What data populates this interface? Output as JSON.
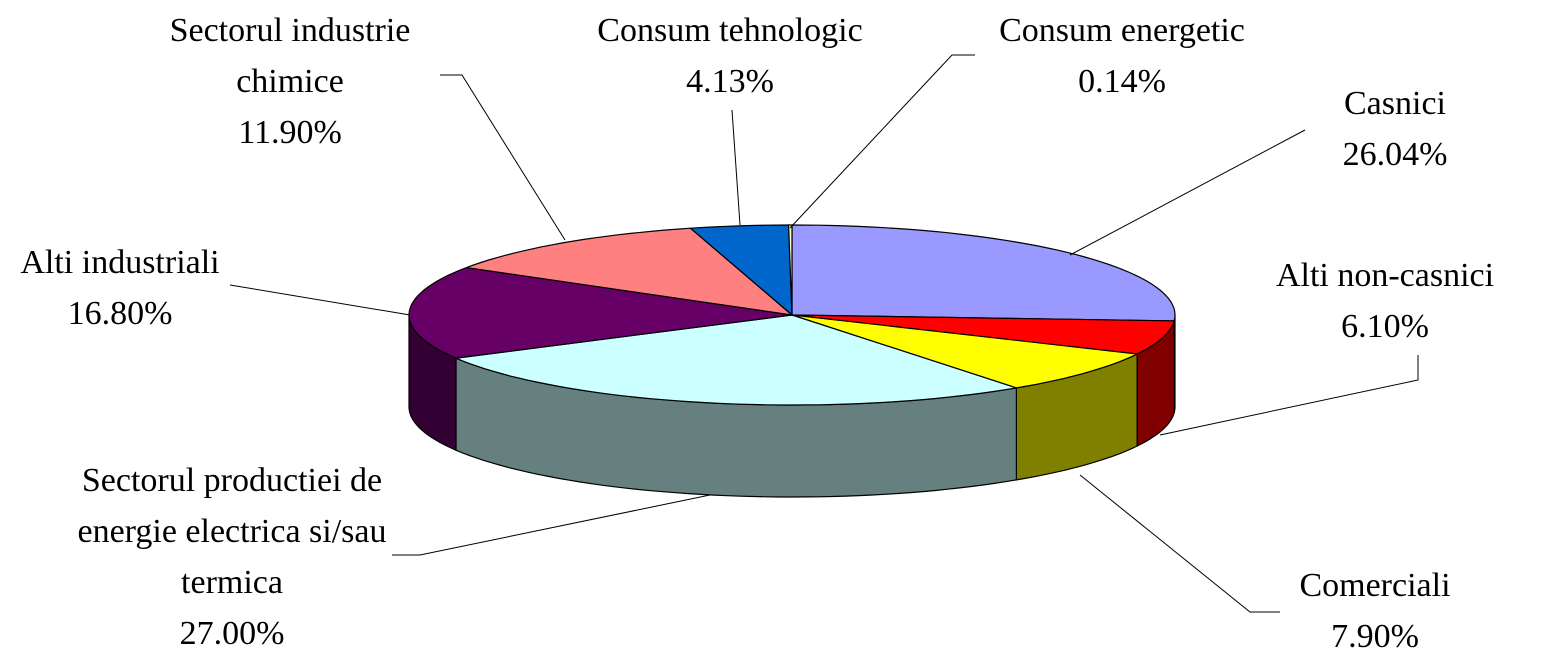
{
  "chart_data": {
    "type": "pie",
    "categories": [
      "Casnici",
      "Alti non-casnici",
      "Comerciali",
      "Sectorul productiei de energie electrica si/sau termica",
      "Alti industriali",
      "Sectorul industrie chimice",
      "Consum tehnologic",
      "Consum energetic"
    ],
    "values": [
      26.04,
      6.1,
      7.9,
      27.0,
      16.8,
      11.9,
      4.13,
      0.14
    ],
    "value_labels": [
      "26.04%",
      "6.10%",
      "7.90%",
      "27.00%",
      "16.80%",
      "11.90%",
      "4.13%",
      "0.14%"
    ],
    "colors": [
      "#9999ff",
      "#ff0000",
      "#ffff00",
      "#ccffff",
      "#660066",
      "#ff8080",
      "#0066cc",
      "#ffffcc"
    ]
  }
}
